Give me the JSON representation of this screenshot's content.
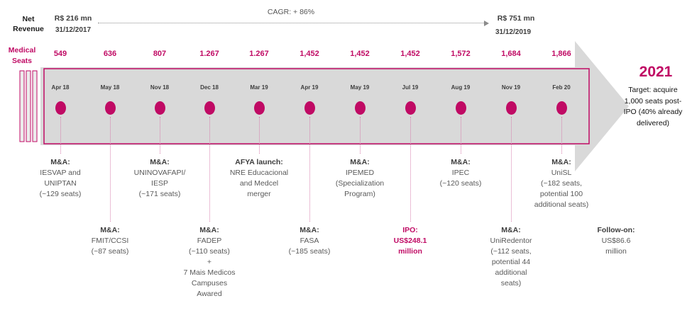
{
  "header": {
    "net_revenue_label": "Net\nRevenue",
    "start_value": "R$ 216 mn",
    "start_date": "31/12/2017",
    "cagr": "CAGR: + 86%",
    "end_value": "R$ 751 mn",
    "end_date": "31/12/2019"
  },
  "seats_label": "Medical\nSeats",
  "timeline": {
    "columns": [
      {
        "date": "Apr 18",
        "seats": "549"
      },
      {
        "date": "May 18",
        "seats": "636"
      },
      {
        "date": "Nov 18",
        "seats": "807"
      },
      {
        "date": "Dec 18",
        "seats": "1.267"
      },
      {
        "date": "Mar 19",
        "seats": "1.267"
      },
      {
        "date": "Apr 19",
        "seats": "1,452"
      },
      {
        "date": "May 19",
        "seats": "1,452"
      },
      {
        "date": "Jul 19",
        "seats": "1,452"
      },
      {
        "date": "Aug 19",
        "seats": "1,572"
      },
      {
        "date": "Nov 19",
        "seats": "1,684"
      },
      {
        "date": "Feb 20",
        "seats": "1,866"
      }
    ]
  },
  "events": [
    {
      "id": "iesvap",
      "col": 0,
      "row": "top",
      "title": "M&A:",
      "body": "IESVAP and\nUNIPTAN\n(~129 seats)",
      "highlight": false
    },
    {
      "id": "fmit",
      "col": 1,
      "row": "bottom",
      "title": "M&A:",
      "body": "FMIT/CCSI\n(~87 seats)",
      "highlight": false
    },
    {
      "id": "uninovafapi",
      "col": 2,
      "row": "top",
      "title": "M&A:",
      "body": "UNINOVAFAPI/\nIESP\n(~171 seats)",
      "highlight": false
    },
    {
      "id": "fadep",
      "col": 3,
      "row": "bottom",
      "title": "M&A:",
      "body": "FADEP\n(~110 seats)\n+\n7 Mais Medicos\nCampuses\nAwared",
      "highlight": false
    },
    {
      "id": "afya-launch",
      "col": 4,
      "row": "top",
      "title": "AFYA launch:",
      "body": "NRE Educacional\nand Medcel\nmerger",
      "highlight": false
    },
    {
      "id": "fasa",
      "col": 5,
      "row": "bottom",
      "title": "M&A:",
      "body": "FASA\n(~185 seats)",
      "highlight": false
    },
    {
      "id": "ipemed",
      "col": 6,
      "row": "top",
      "title": "M&A:",
      "body": "IPEMED\n(Specialization\nProgram)",
      "highlight": false
    },
    {
      "id": "ipo",
      "col": 7,
      "row": "bottom",
      "title": "IPO:",
      "body": "US$248.1\nmillion",
      "highlight": true
    },
    {
      "id": "ipec",
      "col": 8,
      "row": "top",
      "title": "M&A:",
      "body": "IPEC\n(~120 seats)",
      "highlight": false
    },
    {
      "id": "uniredentor",
      "col": 9,
      "row": "bottom",
      "title": "M&A:",
      "body": "UniRedentor\n(~112 seats,\npotential 44\nadditional\nseats)",
      "highlight": false
    },
    {
      "id": "unisl",
      "col": 10,
      "row": "top",
      "title": "M&A:",
      "body": "UniSL\n(~182 seats,\npotential 100\nadditional seats)",
      "highlight": false
    },
    {
      "id": "follow-on",
      "col": 11,
      "row": "bottom",
      "title": "Follow-on:",
      "body": "US$86.6\nmillion",
      "highlight": false
    }
  ],
  "target": {
    "year": "2021",
    "text": "Target: acquire\n1,000 seats post-\nIPO (40% already\ndelivered)"
  },
  "colors": {
    "accent": "#c00a64",
    "arrow_gray": "#d9d9d9"
  }
}
